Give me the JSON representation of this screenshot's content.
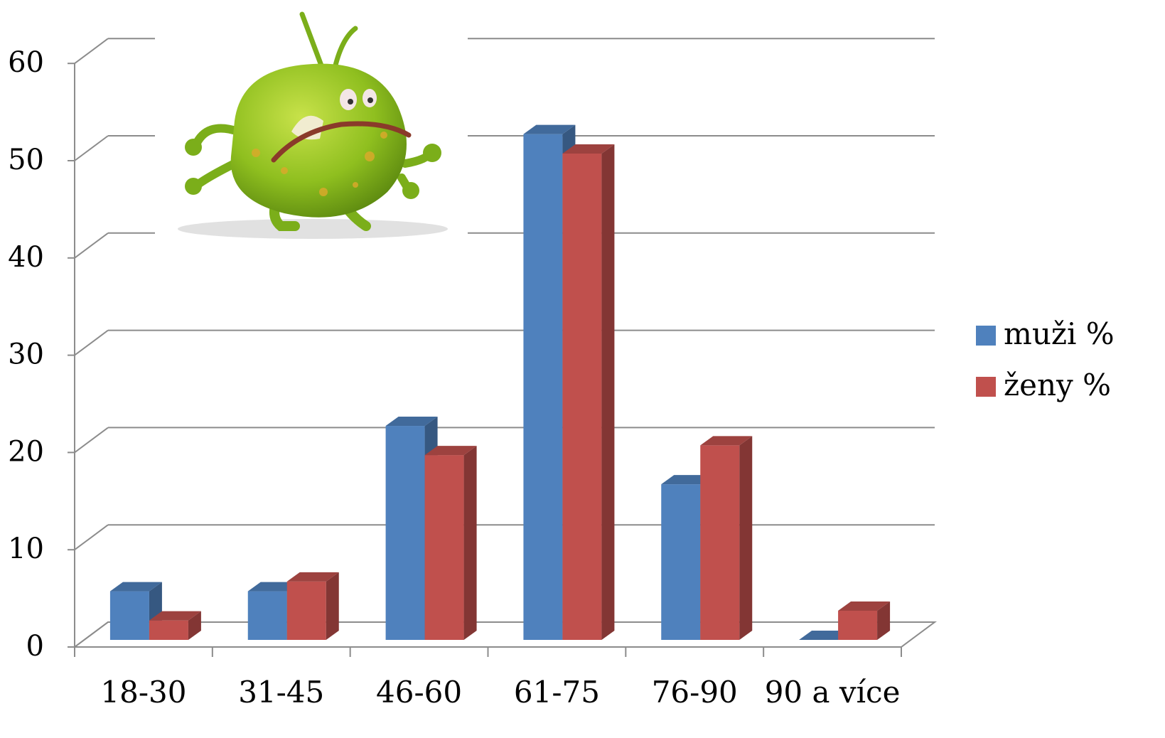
{
  "chart_data": {
    "type": "bar",
    "style": "3d-clustered",
    "categories": [
      "18-30",
      "31-45",
      "46-60",
      "61-75",
      "76-90",
      "90 a více"
    ],
    "series": [
      {
        "name": "muži %",
        "values": [
          5,
          5,
          22,
          52,
          16,
          0
        ],
        "color": "#4F81BD"
      },
      {
        "name": "ženy %",
        "values": [
          2,
          6,
          19,
          50,
          20,
          3
        ],
        "color": "#C0504D"
      }
    ],
    "yticks": [
      "0",
      "10",
      "20",
      "30",
      "40",
      "50",
      "60"
    ],
    "ylim": [
      0,
      60
    ],
    "grid": true,
    "legend_position": "right",
    "illustration": "green-germ-cartoon"
  }
}
